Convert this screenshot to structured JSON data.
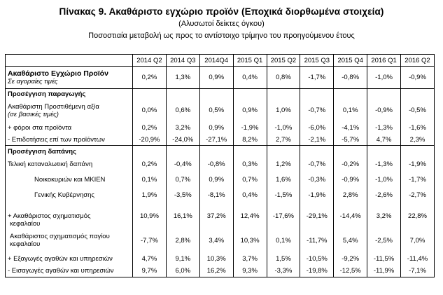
{
  "title": "Πίνακας 9. Ακαθάριστο εγχώριο προϊόν   (Εποχικά διορθωμένα στοιχεία)",
  "subtitle": "(Αλυσωτοί δείκτες όγκου)",
  "caption": "Ποσοστιαία μεταβολή ως προς το αντίστοιχο τρίμηνο  του προηγούμενου έτους",
  "columns": [
    "2014 Q2",
    "2014 Q3",
    "2014Q4",
    "2015 Q1",
    "2015 Q2",
    "2015 Q3",
    "2015 Q4",
    "2016 Q1",
    "2016 Q2"
  ],
  "rows": [
    {
      "label": "Ακαθάριστο Εγχώριο Προϊόν",
      "sublabel": "Σε αγοραίες τιμές",
      "values": [
        "0,2%",
        "1,3%",
        "0,9%",
        "0,4%",
        "0,8%",
        "-1,7%",
        "-0,8%",
        "-1,0%",
        "-0,9%"
      ]
    },
    {
      "label": "Προσέγγιση παραγωγής"
    },
    {
      "label": "Ακαθάριστη Προστιθέμενη αξία",
      "sublabel": "(σε βασικές τιμές)",
      "values": [
        "0,0%",
        "0,6%",
        "0,5%",
        "0,9%",
        "1,0%",
        "-0,7%",
        "0,1%",
        "-0,9%",
        "-0,5%"
      ]
    },
    {
      "label": "+ φόροι στα προϊόντα",
      "values": [
        "0,2%",
        "3,2%",
        "0,9%",
        "-1,9%",
        "-1,0%",
        "-6,0%",
        "-4,1%",
        "-1,3%",
        "-1,6%"
      ]
    },
    {
      "label": "- Επιδοτήσεις επί των προϊόντων",
      "values": [
        "-20,9%",
        "-24,0%",
        "-27,1%",
        "8,2%",
        "2,7%",
        "-2,1%",
        "-5,7%",
        "4,7%",
        "2,3%"
      ]
    },
    {
      "label": "Προσέγγιση δαπάνης"
    },
    {
      "label": "Τελική καταναλωτική δαπάνη",
      "values": [
        "0,2%",
        "-0,4%",
        "-0,8%",
        "0,3%",
        "1,2%",
        "-0,7%",
        "-0,2%",
        "-1,3%",
        "-1,9%"
      ]
    },
    {
      "label": "Νοικοκυριών και ΜΚΙΕΝ",
      "values": [
        "0,1%",
        "0,7%",
        "0,9%",
        "0,7%",
        "1,6%",
        "-0,3%",
        "-0,9%",
        "-1,0%",
        "-1,7%"
      ]
    },
    {
      "label": "Γενικής Κυβέρνησης",
      "values": [
        "1,9%",
        "-3,5%",
        "-8,1%",
        "0,4%",
        "-1,5%",
        "-1,9%",
        "2,8%",
        "-2,6%",
        "-2,7%"
      ]
    },
    {
      "label": "+ Ακαθάριστος σχηματισμός",
      "label2": "κεφαλαίου",
      "values": [
        "10,9%",
        "16,1%",
        "37,2%",
        "12,4%",
        "-17,6%",
        "-29,1%",
        "-14,4%",
        "3,2%",
        "22,8%"
      ]
    },
    {
      "label": "Ακαθάριστος σχηματισμός παγίου",
      "label2": "κεφαλαίου",
      "values": [
        "-7,7%",
        "2,8%",
        "3,4%",
        "10,3%",
        "0,1%",
        "-11,7%",
        "5,4%",
        "-2,5%",
        "7,0%"
      ]
    },
    {
      "label": "+ Εξαγωγές αγαθών και υπηρεσιών",
      "values": [
        "4,7%",
        "9,1%",
        "10,3%",
        "3,7%",
        "1,5%",
        "-10,5%",
        "-9,2%",
        "-11,5%",
        "-11,4%"
      ]
    },
    {
      "label": "- Εισαγωγές αγαθών και υπηρεσιών",
      "values": [
        "9,7%",
        "6,0%",
        "16,2%",
        "9,3%",
        "-3,3%",
        "-19,8%",
        "-12,5%",
        "-11,9%",
        "-7,1%"
      ]
    }
  ]
}
